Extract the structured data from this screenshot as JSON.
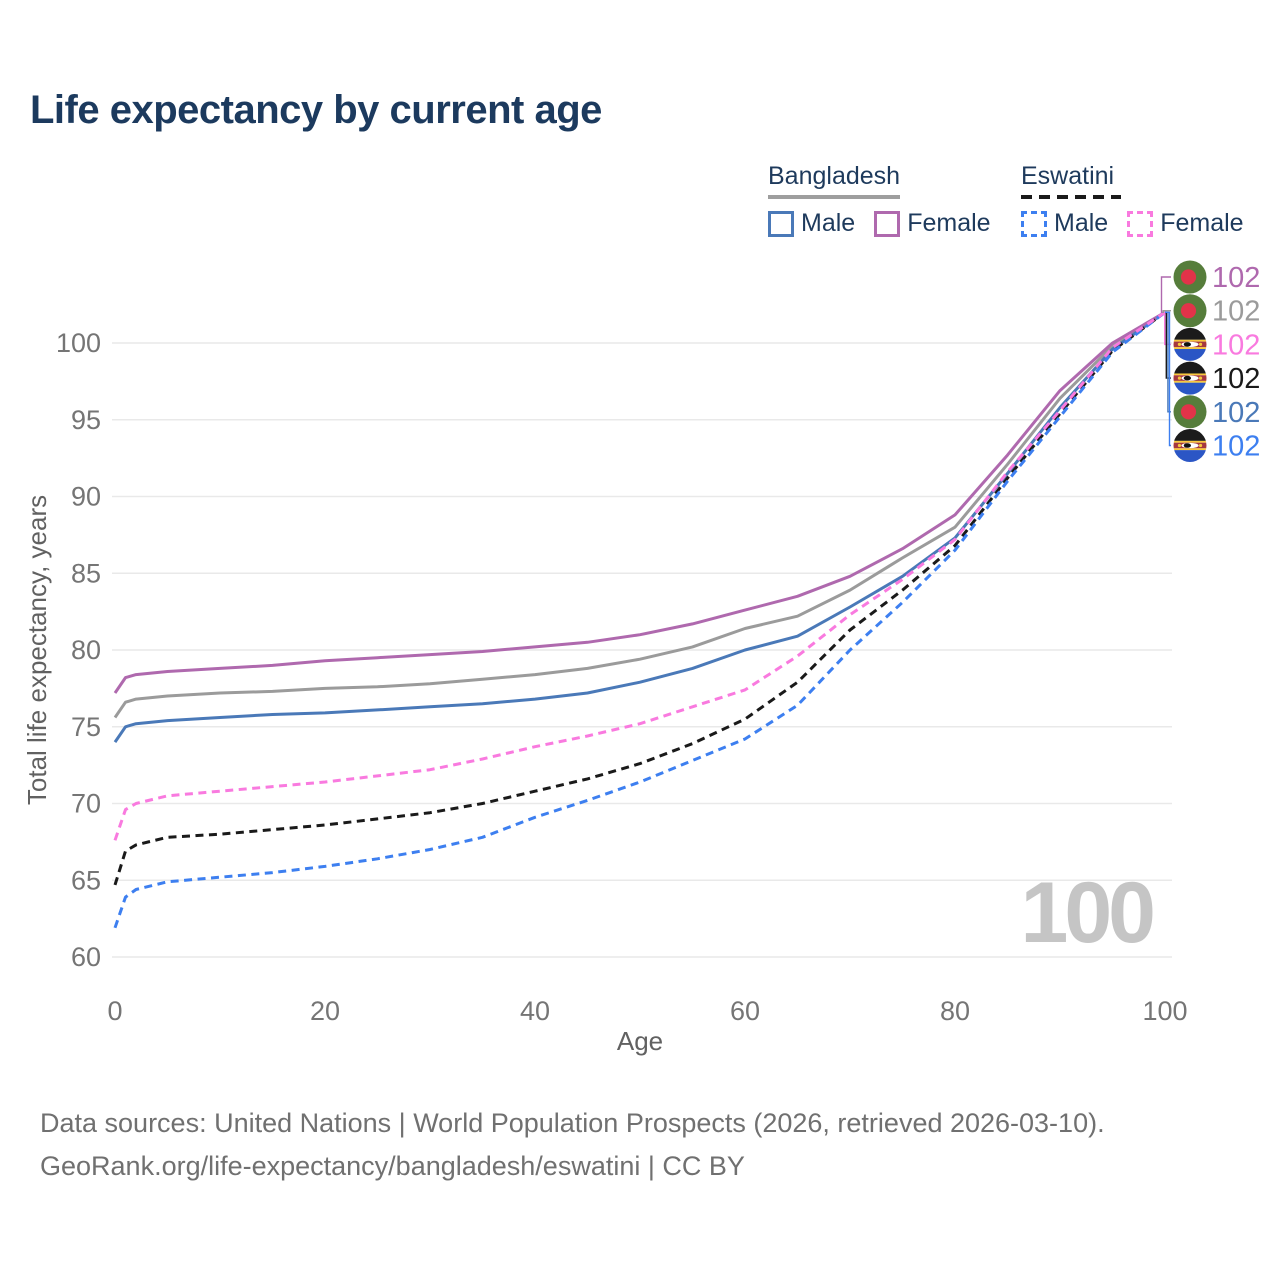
{
  "title": "Life expectancy by current age",
  "watermark": "100",
  "footer": {
    "line1": "Data sources: United Nations | World Population Prospects (2026, retrieved 2026-03-10).",
    "line2": "GeoRank.org/life-expectancy/bangladesh/eswatini | CC BY"
  },
  "legend": {
    "groups": [
      {
        "name": "Bangladesh",
        "line_style": "solid",
        "underline_color": "#9e9e9e",
        "items": [
          {
            "label": "Male",
            "color": "#4a79b8"
          },
          {
            "label": "Female",
            "color": "#af69ae"
          }
        ]
      },
      {
        "name": "Eswatini",
        "line_style": "dashed",
        "underline_color": "#1a1a1a",
        "items": [
          {
            "label": "Male",
            "color": "#3d7ff0"
          },
          {
            "label": "Female",
            "color": "#f97adf"
          }
        ]
      }
    ]
  },
  "chart_data": {
    "type": "line",
    "title": "Life expectancy by current age",
    "xlabel": "Age",
    "ylabel": "Total life expectancy, years",
    "xlim": [
      0,
      100
    ],
    "ylim": [
      60,
      102.5
    ],
    "xticks": [
      0,
      20,
      40,
      60,
      80,
      100
    ],
    "yticks": [
      60,
      65,
      70,
      75,
      80,
      85,
      90,
      95,
      100
    ],
    "grid": "horizontal-only",
    "legend_position": "top-right",
    "ages": [
      0,
      1,
      2,
      5,
      10,
      15,
      20,
      25,
      30,
      35,
      40,
      45,
      50,
      55,
      60,
      65,
      70,
      75,
      80,
      85,
      90,
      95,
      100
    ],
    "series": [
      {
        "name": "Bangladesh (both sexes)",
        "country": "Bangladesh",
        "sex": "Both",
        "color": "#9b9b9b",
        "dash": false,
        "values": [
          75.6,
          76.6,
          76.8,
          77.0,
          77.2,
          77.3,
          77.5,
          77.6,
          77.8,
          78.1,
          78.4,
          78.8,
          79.4,
          80.2,
          81.4,
          82.2,
          83.9,
          86.0,
          88.0,
          92.1,
          96.4,
          99.8,
          102.0
        ]
      },
      {
        "name": "Bangladesh Male",
        "country": "Bangladesh",
        "sex": "Male",
        "color": "#4a79b8",
        "dash": false,
        "values": [
          74.0,
          75.0,
          75.2,
          75.4,
          75.6,
          75.8,
          75.9,
          76.1,
          76.3,
          76.5,
          76.8,
          77.2,
          77.9,
          78.8,
          80.0,
          80.9,
          82.8,
          84.8,
          87.3,
          91.5,
          95.8,
          99.6,
          102.0
        ]
      },
      {
        "name": "Bangladesh Female",
        "country": "Bangladesh",
        "sex": "Female",
        "color": "#af69ae",
        "dash": false,
        "values": [
          77.2,
          78.2,
          78.4,
          78.6,
          78.8,
          79.0,
          79.3,
          79.5,
          79.7,
          79.9,
          80.2,
          80.5,
          81.0,
          81.7,
          82.6,
          83.5,
          84.8,
          86.6,
          88.8,
          92.7,
          96.9,
          100.0,
          102.0
        ]
      },
      {
        "name": "Eswatini (both sexes)",
        "country": "Eswatini",
        "sex": "Both",
        "color": "#1a1a1a",
        "dash": true,
        "values": [
          64.7,
          66.9,
          67.3,
          67.8,
          68.0,
          68.3,
          68.6,
          69.0,
          69.4,
          70.0,
          70.8,
          71.6,
          72.6,
          73.9,
          75.5,
          77.9,
          81.3,
          83.9,
          86.8,
          91.2,
          95.4,
          99.5,
          102.0
        ]
      },
      {
        "name": "Eswatini Male",
        "country": "Eswatini",
        "sex": "Male",
        "color": "#3d7ff0",
        "dash": true,
        "values": [
          61.9,
          63.9,
          64.4,
          64.9,
          65.2,
          65.5,
          65.9,
          66.4,
          67.0,
          67.8,
          69.1,
          70.2,
          71.4,
          72.8,
          74.2,
          76.4,
          80.0,
          83.1,
          86.5,
          91.0,
          95.2,
          99.4,
          102.0
        ]
      },
      {
        "name": "Eswatini Female",
        "country": "Eswatini",
        "sex": "Female",
        "color": "#f97adf",
        "dash": true,
        "values": [
          67.6,
          69.6,
          70.0,
          70.5,
          70.8,
          71.1,
          71.4,
          71.8,
          72.2,
          72.9,
          73.7,
          74.4,
          75.2,
          76.3,
          77.4,
          79.6,
          82.3,
          84.6,
          87.2,
          91.6,
          95.6,
          99.7,
          102.0
        ]
      }
    ],
    "end_labels": [
      {
        "series": "Bangladesh Female",
        "country": "bangladesh",
        "value": "102",
        "color": "#af69ae"
      },
      {
        "series": "Bangladesh (both sexes)",
        "country": "bangladesh",
        "value": "102",
        "color": "#9b9b9b"
      },
      {
        "series": "Eswatini Female",
        "country": "eswatini",
        "value": "102",
        "color": "#f97adf"
      },
      {
        "series": "Eswatini (both sexes)",
        "country": "eswatini",
        "value": "102",
        "color": "#1a1a1a"
      },
      {
        "series": "Bangladesh Male",
        "country": "bangladesh",
        "value": "102",
        "color": "#4a79b8"
      },
      {
        "series": "Eswatini Male",
        "country": "eswatini",
        "value": "102",
        "color": "#3d7ff0"
      }
    ]
  }
}
